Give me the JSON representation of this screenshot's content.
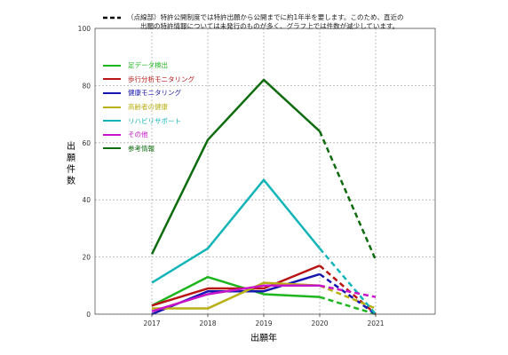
{
  "note": {
    "line1": "（点線部）特許公開制度では特許出願から公開までに約1年半を要します。このため、直近の",
    "line2": "出願の特許情報については未発行のものが多く、グラフ上では件数が減少しています。"
  },
  "chart_data": {
    "type": "line",
    "title": "",
    "xlabel": "出願年",
    "ylabel": "出願件数",
    "categories": [
      "2017",
      "2018",
      "2019",
      "2020",
      "2021"
    ],
    "ylim": [
      0,
      100
    ],
    "yticks": [
      0,
      20,
      40,
      60,
      80,
      100
    ],
    "grid": true,
    "legend_position": "top-left",
    "dashed_from_index": 3,
    "series": [
      {
        "name": "足データ検出",
        "color": "#1fb51f",
        "values": [
          3,
          13,
          7,
          6,
          0
        ]
      },
      {
        "name": "歩行分析モニタリング",
        "color": "#b81414",
        "values": [
          3,
          9,
          9,
          17,
          0
        ]
      },
      {
        "name": "健康モニタリング",
        "color": "#1616b0",
        "values": [
          0,
          8,
          8,
          14,
          0
        ]
      },
      {
        "name": "高齢者の健康",
        "color": "#b8b014",
        "values": [
          2,
          2,
          11,
          10,
          2
        ]
      },
      {
        "name": "リハビリサポート",
        "color": "#14b4b8",
        "values": [
          11,
          23,
          47,
          23,
          0
        ]
      },
      {
        "name": "その他",
        "color": "#c814c8",
        "values": [
          1,
          7,
          10,
          10,
          6
        ]
      },
      {
        "name": "参考情報",
        "color": "#0e6b0e",
        "values": [
          21,
          61,
          82,
          64,
          19
        ]
      }
    ]
  }
}
